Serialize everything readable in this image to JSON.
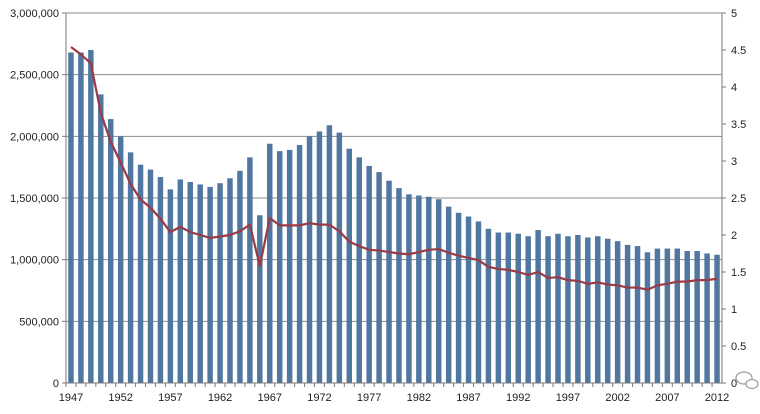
{
  "chart_data": {
    "type": "bar",
    "title": "",
    "xlabel": "",
    "ylabel": "",
    "y2label": "",
    "grid": true,
    "legend": "none",
    "ylim": [
      0,
      3000000
    ],
    "y2lim": [
      0,
      5
    ],
    "left_ticks": [
      "0",
      "500,000",
      "1,000,000",
      "1,500,000",
      "2,000,000",
      "2,500,000",
      "3,000,000"
    ],
    "right_ticks": [
      "0",
      "0.5",
      "1",
      "1.5",
      "2",
      "2.5",
      "3",
      "3.5",
      "4",
      "4.5",
      "5"
    ],
    "x_ticks": [
      "1947",
      "1952",
      "1957",
      "1962",
      "1967",
      "1972",
      "1977",
      "1982",
      "1987",
      "1992",
      "1997",
      "2002",
      "2007",
      "2012"
    ],
    "categories": [
      "1947",
      "1948",
      "1949",
      "1950",
      "1951",
      "1952",
      "1953",
      "1954",
      "1955",
      "1956",
      "1957",
      "1958",
      "1959",
      "1960",
      "1961",
      "1962",
      "1963",
      "1964",
      "1965",
      "1966",
      "1967",
      "1968",
      "1969",
      "1970",
      "1971",
      "1972",
      "1973",
      "1974",
      "1975",
      "1976",
      "1977",
      "1978",
      "1979",
      "1980",
      "1981",
      "1982",
      "1983",
      "1984",
      "1985",
      "1986",
      "1987",
      "1988",
      "1989",
      "1990",
      "1991",
      "1992",
      "1993",
      "1994",
      "1995",
      "1996",
      "1997",
      "1998",
      "1999",
      "2000",
      "2001",
      "2002",
      "2003",
      "2004",
      "2005",
      "2006",
      "2007",
      "2008",
      "2009",
      "2010",
      "2011",
      "2012"
    ],
    "series": [
      {
        "axis": "left",
        "kind": "bar",
        "color": "#4f77a0",
        "values": [
          2680000,
          2680000,
          2700000,
          2340000,
          2140000,
          2000000,
          1870000,
          1770000,
          1730000,
          1670000,
          1570000,
          1650000,
          1630000,
          1610000,
          1590000,
          1620000,
          1660000,
          1720000,
          1830000,
          1360000,
          1940000,
          1880000,
          1890000,
          1930000,
          2000000,
          2040000,
          2090000,
          2030000,
          1900000,
          1830000,
          1760000,
          1710000,
          1640000,
          1580000,
          1530000,
          1520000,
          1510000,
          1490000,
          1430000,
          1380000,
          1350000,
          1310000,
          1250000,
          1220000,
          1220000,
          1210000,
          1190000,
          1240000,
          1190000,
          1210000,
          1190000,
          1200000,
          1180000,
          1190000,
          1170000,
          1150000,
          1120000,
          1110000,
          1060000,
          1090000,
          1090000,
          1090000,
          1070000,
          1070000,
          1050000,
          1040000
        ]
      },
      {
        "axis": "right",
        "kind": "line",
        "color": "#9b3a45",
        "values": [
          4.54,
          4.44,
          4.32,
          3.65,
          3.26,
          2.98,
          2.69,
          2.48,
          2.37,
          2.22,
          2.04,
          2.11,
          2.04,
          2.0,
          1.96,
          1.98,
          2.0,
          2.05,
          2.14,
          1.58,
          2.23,
          2.13,
          2.13,
          2.13,
          2.16,
          2.14,
          2.14,
          2.05,
          1.91,
          1.85,
          1.8,
          1.79,
          1.77,
          1.75,
          1.74,
          1.77,
          1.8,
          1.81,
          1.76,
          1.72,
          1.69,
          1.66,
          1.57,
          1.54,
          1.53,
          1.5,
          1.46,
          1.5,
          1.42,
          1.43,
          1.39,
          1.38,
          1.34,
          1.36,
          1.33,
          1.32,
          1.29,
          1.29,
          1.26,
          1.32,
          1.34,
          1.37,
          1.37,
          1.39,
          1.39,
          1.41
        ]
      }
    ]
  },
  "watermark_icon": "wechat-icon"
}
